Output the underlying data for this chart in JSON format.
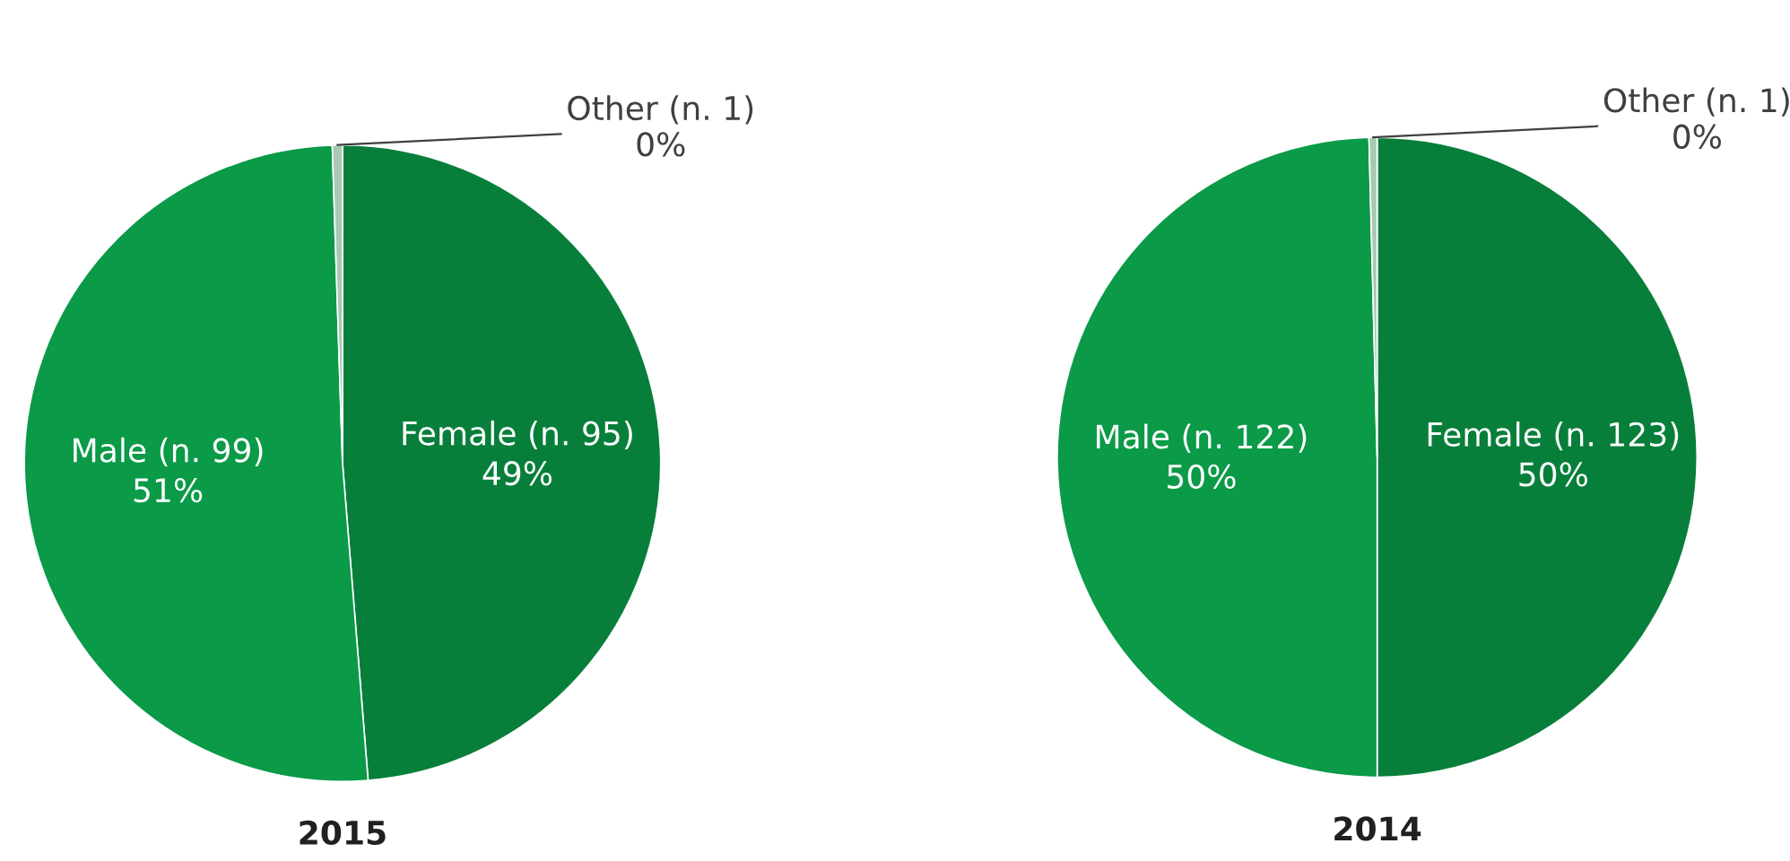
{
  "chart_data": [
    {
      "type": "pie",
      "title": "2015",
      "categories": [
        "Female (n. 95)\n49%",
        "Male (n. 99)\n51%",
        "Other (n. 1)\n0%"
      ],
      "values": [
        95,
        99,
        1
      ],
      "colors": [
        "#077f3a",
        "#0a9a48",
        "#a9c9b2"
      ]
    },
    {
      "type": "pie",
      "title": "2014",
      "categories": [
        "Female (n. 123)\n50%",
        "Male (n. 122)\n50%",
        "Other (n. 1)\n0%"
      ],
      "values": [
        123,
        122,
        1
      ],
      "colors": [
        "#077f3a",
        "#0a9a48",
        "#a9c9b2"
      ]
    }
  ]
}
